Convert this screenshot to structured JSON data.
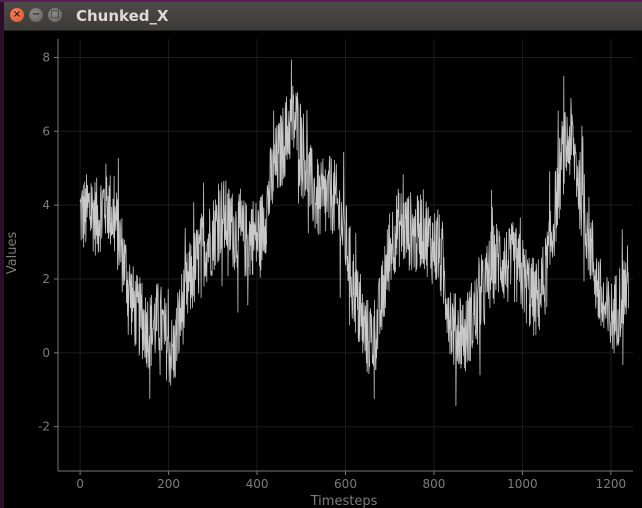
{
  "window": {
    "title": "Chunked_X",
    "close_icon": "close-icon",
    "minimize_icon": "minimize-icon",
    "maximize_icon": "maximize-icon"
  },
  "chart_data": {
    "type": "line",
    "title": "",
    "xlabel": "Timesteps",
    "ylabel": "Values",
    "xlim": [
      -50,
      1250
    ],
    "ylim": [
      -3.2,
      8.5
    ],
    "xticks": [
      0,
      200,
      400,
      600,
      800,
      1000,
      1200
    ],
    "yticks": [
      -2,
      0,
      2,
      4,
      6,
      8
    ],
    "grid": true,
    "line_color": "#c8c8c8",
    "background": "#000000",
    "trend": {
      "x": [
        0,
        10,
        20,
        30,
        40,
        50,
        60,
        70,
        80,
        90,
        100,
        110,
        120,
        130,
        140,
        150,
        160,
        170,
        180,
        190,
        200,
        210,
        220,
        230,
        240,
        250,
        260,
        270,
        280,
        290,
        300,
        310,
        320,
        330,
        340,
        350,
        360,
        370,
        380,
        390,
        400,
        410,
        420,
        430,
        440,
        450,
        460,
        470,
        480,
        490,
        500,
        510,
        520,
        530,
        540,
        550,
        560,
        570,
        580,
        590,
        600,
        610,
        620,
        630,
        640,
        650,
        660,
        670,
        680,
        690,
        700,
        710,
        720,
        730,
        740,
        750,
        760,
        770,
        780,
        790,
        800,
        810,
        820,
        830,
        840,
        850,
        860,
        870,
        880,
        890,
        900,
        910,
        920,
        930,
        940,
        950,
        960,
        970,
        980,
        990,
        1000,
        1010,
        1020,
        1030,
        1040,
        1050,
        1060,
        1070,
        1080,
        1090,
        1100,
        1110,
        1120,
        1130,
        1140,
        1150,
        1160,
        1170,
        1180,
        1190,
        1200,
        1210,
        1220,
        1230,
        1240
      ],
      "y": [
        3.8,
        3.7,
        3.9,
        3.8,
        3.6,
        4.0,
        4.1,
        3.8,
        3.5,
        3.0,
        2.4,
        1.8,
        1.3,
        1.0,
        0.9,
        0.7,
        0.6,
        0.8,
        0.9,
        0.5,
        0.2,
        -0.1,
        0.5,
        1.2,
        1.6,
        2.0,
        2.3,
        2.6,
        2.9,
        3.0,
        3.2,
        3.5,
        3.7,
        3.6,
        3.4,
        3.3,
        3.2,
        3.1,
        3.0,
        3.2,
        3.1,
        3.3,
        3.8,
        4.5,
        5.0,
        5.3,
        5.7,
        6.1,
        6.3,
        6.2,
        5.8,
        5.2,
        4.6,
        4.3,
        4.1,
        4.0,
        4.2,
        4.3,
        4.0,
        3.6,
        3.1,
        2.4,
        1.7,
        1.1,
        0.7,
        0.4,
        0.4,
        0.6,
        1.2,
        2.0,
        2.8,
        3.2,
        3.4,
        3.4,
        3.3,
        3.3,
        3.1,
        3.4,
        3.3,
        3.0,
        2.9,
        2.8,
        2.2,
        1.5,
        0.8,
        0.5,
        0.7,
        0.4,
        0.8,
        1.0,
        1.2,
        1.5,
        1.9,
        2.3,
        2.5,
        2.6,
        2.4,
        2.3,
        2.5,
        2.2,
        2.1,
        1.8,
        1.6,
        1.4,
        1.6,
        2.0,
        2.6,
        3.5,
        4.4,
        5.3,
        5.6,
        5.8,
        5.2,
        4.4,
        3.8,
        3.2,
        2.5,
        1.8,
        1.3,
        1.0,
        0.9,
        1.1,
        1.4,
        1.7,
        1.9
      ],
      "noise_amplitude": 1.1
    }
  }
}
